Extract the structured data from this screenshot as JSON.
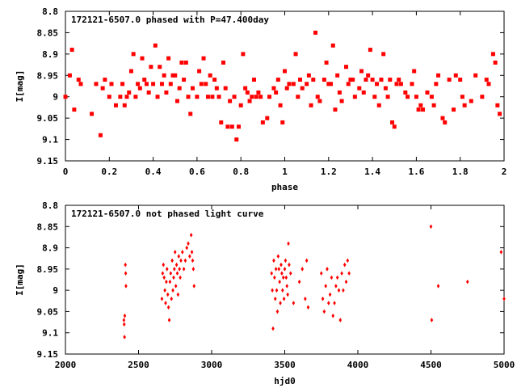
{
  "chart_data": [
    {
      "type": "scatter",
      "title": "172121-6507.0 phased with P=47.400day",
      "xlabel": "phase",
      "ylabel": "I[mag]",
      "xlim": [
        0,
        2
      ],
      "ylim": [
        8.8,
        9.15
      ],
      "y_inverted": true,
      "xticks": [
        "0",
        "0.2",
        "0.4",
        "0.6",
        "0.8",
        "1",
        "1.2",
        "1.4",
        "1.6",
        "1.8",
        "2"
      ],
      "yticks": [
        "8.8",
        "8.85",
        "8.9",
        "8.95",
        "9",
        "9.05",
        "9.1",
        "9.15"
      ],
      "grid": false,
      "marker_color": "#ff0000",
      "series": [
        {
          "x": [
            0.0,
            0.02,
            0.03,
            0.04,
            0.06,
            0.07,
            0.12,
            0.14,
            0.16,
            0.17,
            0.18,
            0.2,
            0.21,
            0.23,
            0.25,
            0.26,
            0.27,
            0.28,
            0.29,
            0.3,
            0.31,
            0.32,
            0.33,
            0.34,
            0.35,
            0.36,
            0.37,
            0.38,
            0.39,
            0.4,
            0.41,
            0.42,
            0.43,
            0.44,
            0.45,
            0.46,
            0.47,
            0.48,
            0.49,
            0.5,
            0.51,
            0.52,
            0.53,
            0.54,
            0.55,
            0.56,
            0.57,
            0.58,
            0.6,
            0.61,
            0.62,
            0.63,
            0.64,
            0.65,
            0.66,
            0.67,
            0.68,
            0.69,
            0.7,
            0.71,
            0.72,
            0.73,
            0.74,
            0.75,
            0.76,
            0.77,
            0.78,
            0.79,
            0.8,
            0.81,
            0.82,
            0.83,
            0.84,
            0.85,
            0.86,
            0.87,
            0.88,
            0.89,
            0.9,
            0.92,
            0.93,
            0.95,
            0.96,
            0.97,
            0.98,
            0.99,
            1.0,
            1.01,
            1.02,
            1.04,
            1.05,
            1.06,
            1.07,
            1.08,
            1.1,
            1.11,
            1.12,
            1.13,
            1.14,
            1.15,
            1.16,
            1.18,
            1.19,
            1.2,
            1.21,
            1.22,
            1.23,
            1.24,
            1.25,
            1.26,
            1.28,
            1.29,
            1.3,
            1.31,
            1.32,
            1.34,
            1.35,
            1.36,
            1.37,
            1.38,
            1.39,
            1.4,
            1.41,
            1.42,
            1.43,
            1.44,
            1.45,
            1.46,
            1.47,
            1.48,
            1.49,
            1.5,
            1.51,
            1.52,
            1.53,
            1.55,
            1.56,
            1.58,
            1.59,
            1.6,
            1.61,
            1.62,
            1.63,
            1.65,
            1.67,
            1.68,
            1.69,
            1.7,
            1.72,
            1.73,
            1.75,
            1.77,
            1.78,
            1.8,
            1.81,
            1.82,
            1.85,
            1.87,
            1.9,
            1.92,
            1.93,
            1.95,
            1.96,
            1.97,
            1.98
          ],
          "y": [
            9.0,
            8.95,
            8.89,
            9.03,
            8.96,
            8.97,
            9.04,
            8.97,
            9.09,
            8.98,
            8.96,
            9.0,
            8.97,
            9.02,
            9.0,
            8.97,
            9.02,
            9.0,
            8.99,
            8.94,
            8.9,
            9.0,
            8.97,
            8.98,
            8.91,
            8.96,
            8.97,
            8.99,
            8.93,
            8.97,
            8.88,
            9.0,
            8.93,
            8.97,
            8.95,
            8.99,
            8.91,
            8.97,
            8.95,
            8.95,
            9.01,
            8.98,
            8.92,
            8.96,
            8.92,
            9.0,
            9.04,
            8.98,
            9.0,
            8.94,
            8.97,
            8.91,
            8.97,
            9.0,
            8.95,
            9.0,
            8.96,
            8.98,
            9.0,
            9.06,
            8.92,
            8.98,
            9.07,
            9.01,
            9.07,
            9.0,
            9.1,
            9.07,
            9.02,
            8.9,
            8.98,
            8.99,
            9.01,
            9.0,
            8.96,
            9.0,
            8.99,
            9.0,
            9.06,
            9.05,
            9.0,
            8.98,
            8.99,
            8.96,
            9.02,
            9.06,
            8.94,
            8.98,
            8.97,
            8.97,
            8.9,
            9.0,
            8.96,
            8.98,
            8.97,
            8.95,
            9.02,
            8.96,
            8.85,
            9.0,
            9.01,
            8.96,
            8.92,
            8.97,
            8.97,
            8.88,
            9.03,
            8.95,
            8.99,
            9.01,
            8.93,
            8.97,
            8.96,
            8.96,
            9.0,
            8.98,
            8.94,
            8.99,
            8.96,
            8.95,
            8.89,
            8.96,
            9.0,
            8.97,
            9.02,
            8.96,
            8.9,
            8.98,
            9.0,
            8.96,
            9.06,
            9.07,
            8.97,
            8.96,
            8.97,
            8.99,
            9.0,
            8.97,
            8.94,
            9.0,
            9.03,
            9.02,
            9.03,
            8.99,
            9.0,
            9.02,
            8.97,
            8.95,
            9.05,
            9.06,
            8.96,
            9.03,
            8.95,
            8.96,
            9.0,
            9.02,
            9.01,
            8.95,
            9.0,
            8.96,
            8.97,
            8.9,
            8.92,
            9.02,
            9.04
          ]
        }
      ]
    },
    {
      "type": "scatter",
      "title": "172121-6507.0 not phased light curve",
      "xlabel": "hjd0",
      "ylabel": "I[mag]",
      "xlim": [
        2000,
        5000
      ],
      "ylim": [
        8.8,
        9.15
      ],
      "y_inverted": true,
      "xticks": [
        "2000",
        "2500",
        "3000",
        "3500",
        "4000",
        "4500",
        "5000"
      ],
      "yticks": [
        "8.8",
        "8.85",
        "8.9",
        "8.95",
        "9",
        "9.05",
        "9.1",
        "9.15"
      ],
      "grid": false,
      "marker_color": "#ff0000",
      "series": [
        {
          "x": [
            2400,
            2402,
            2404,
            2406,
            2410,
            2412,
            2414,
            2660,
            2665,
            2670,
            2675,
            2680,
            2685,
            2690,
            2695,
            2700,
            2705,
            2710,
            2715,
            2720,
            2725,
            2730,
            2735,
            2740,
            2745,
            2750,
            2755,
            2760,
            2765,
            2770,
            2775,
            2780,
            2785,
            2790,
            2800,
            2810,
            2820,
            2830,
            2840,
            2850,
            2860,
            2865,
            2870,
            2875,
            2880,
            3410,
            3415,
            3420,
            3425,
            3430,
            3435,
            3440,
            3445,
            3450,
            3455,
            3460,
            3465,
            3470,
            3475,
            3480,
            3485,
            3490,
            3495,
            3500,
            3505,
            3510,
            3515,
            3520,
            3525,
            3530,
            3540,
            3560,
            3600,
            3620,
            3640,
            3650,
            3660,
            3750,
            3760,
            3770,
            3780,
            3790,
            3800,
            3810,
            3820,
            3830,
            3840,
            3850,
            3860,
            3870,
            3880,
            3890,
            3900,
            3910,
            3920,
            3930,
            3940,
            4500,
            4505,
            4550,
            4750,
            4980,
            5000
          ],
          "y": [
            9.07,
            9.08,
            9.11,
            9.06,
            8.94,
            8.96,
            8.99,
            9.02,
            8.96,
            8.94,
            8.97,
            9.0,
            9.03,
            8.98,
            8.95,
            9.01,
            9.04,
            9.07,
            8.98,
            8.96,
            9.02,
            8.93,
            9.0,
            8.97,
            8.95,
            8.91,
            8.99,
            8.94,
            8.96,
            9.01,
            8.92,
            8.95,
            8.97,
            8.93,
            8.91,
            8.95,
            8.93,
            8.9,
            8.89,
            8.92,
            8.87,
            8.91,
            8.93,
            8.95,
            8.99,
            8.96,
            9.0,
            9.09,
            8.93,
            8.97,
            9.02,
            8.95,
            9.0,
            9.05,
            8.92,
            8.95,
            8.98,
            9.03,
            8.94,
            8.96,
            9.0,
            8.97,
            9.02,
            8.95,
            8.93,
            8.97,
            8.99,
            9.01,
            8.89,
            8.94,
            8.96,
            9.03,
            8.98,
            8.95,
            9.02,
            8.93,
            9.04,
            8.96,
            9.02,
            9.05,
            8.99,
            8.95,
            9.03,
            9.01,
            8.97,
            9.06,
            9.03,
            8.99,
            8.97,
            9.0,
            9.07,
            8.96,
            9.0,
            8.94,
            8.98,
            8.93,
            8.96,
            8.85,
            9.07,
            8.99,
            8.98,
            8.91,
            9.02
          ]
        }
      ]
    }
  ]
}
